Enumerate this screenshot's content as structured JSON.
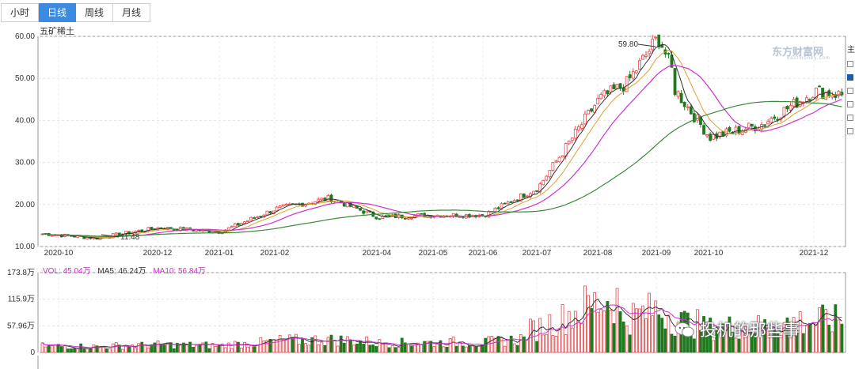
{
  "tabs": [
    {
      "label": "小时",
      "active": false
    },
    {
      "label": "日线",
      "active": true
    },
    {
      "label": "周线",
      "active": false
    },
    {
      "label": "月线",
      "active": false
    }
  ],
  "stock_name": "五矿稀土",
  "right_panel": {
    "label": "主",
    "checkboxes": [
      false,
      true,
      false,
      false,
      false,
      false
    ]
  },
  "watermark": {
    "brand": "东方财富网",
    "site": "eastmoney.com"
  },
  "overlay_text": "投机的那些事",
  "volume_legend": {
    "vol": "VOL: 45.04万",
    "ma5": "MA5: 46.24万",
    "ma10": "MA10: 56.84万"
  },
  "chart_data": [
    {
      "type": "candlestick",
      "y_ticks": [
        "60.00",
        "50.00",
        "40.00",
        "30.00",
        "20.00",
        "10.00"
      ],
      "ylim": [
        10,
        60
      ],
      "x_ticks": [
        "2020-10",
        "2020-12",
        "2021-01",
        "2021-02",
        "2021-04",
        "2021-05",
        "2021-06",
        "2021-07",
        "2021-08",
        "2021-09",
        "2021-10",
        "2021-12"
      ],
      "annotations": [
        {
          "text": "59.80",
          "type": "high"
        },
        {
          "text": "11.48",
          "type": "low"
        }
      ],
      "series_colors": {
        "up": "#e8454b",
        "down": "#1f7a1f",
        "ma_short": "#333333",
        "ma_mid": "#e0a030",
        "ma_long": "#cc33cc",
        "ma_year": "#3a8a3a"
      },
      "anchors": [
        {
          "month": "2020-10",
          "close": 13
        },
        {
          "month": "2020-11",
          "close": 12
        },
        {
          "month": "2020-12",
          "close": 14.5
        },
        {
          "month": "2021-01",
          "close": 13.5
        },
        {
          "month": "2021-02",
          "close": 19
        },
        {
          "month": "2021-03",
          "close": 21.5
        },
        {
          "month": "2021-04",
          "close": 17
        },
        {
          "month": "2021-05",
          "close": 17.5
        },
        {
          "month": "2021-06",
          "close": 17.5
        },
        {
          "month": "2021-07",
          "close": 24
        },
        {
          "month": "2021-08",
          "close": 45
        },
        {
          "month": "2021-09",
          "close": 53
        },
        {
          "month": "2021-10",
          "close": 36
        },
        {
          "month": "2021-11",
          "close": 39
        },
        {
          "month": "2021-12",
          "close": 47
        }
      ]
    },
    {
      "type": "bar",
      "y_ticks": [
        "173.8万",
        "115.9万",
        "57.96万",
        "0"
      ],
      "ylim": [
        0,
        173.8
      ],
      "unit": "万",
      "series_colors": {
        "ma5": "#333333",
        "ma10": "#cc33cc"
      }
    }
  ]
}
